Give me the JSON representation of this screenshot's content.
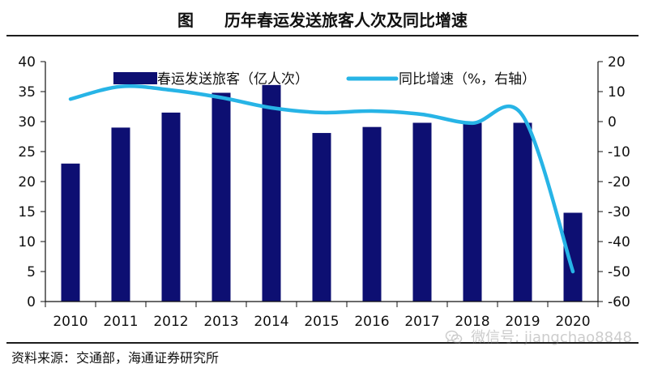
{
  "header": {
    "title_prefix": "图",
    "title_main": "历年春运发送旅客人次及同比增速"
  },
  "source": "资料来源：交通部，海通证券研究所",
  "watermark": {
    "text": "微信号: jiangchao8848",
    "icon": "wechat-icon"
  },
  "colors": {
    "bar": "#0d0f72",
    "line": "#27b4e6",
    "axis": "#111111",
    "text": "#111111",
    "watermark": "#8a8a8a"
  },
  "chart_data": {
    "type": "bar",
    "title": "历年春运发送旅客人次及同比增速",
    "categories": [
      "2010",
      "2011",
      "2012",
      "2013",
      "2014",
      "2015",
      "2016",
      "2017",
      "2018",
      "2019",
      "2020"
    ],
    "series": [
      {
        "name": "春运发送旅客（亿人次）",
        "type": "bar",
        "axis": "left",
        "values": [
          23.0,
          29.0,
          31.5,
          34.8,
          36.1,
          28.1,
          29.1,
          29.8,
          29.8,
          29.8,
          14.8
        ]
      },
      {
        "name": "同比增速（%，右轴）",
        "type": "line",
        "axis": "right",
        "values": [
          7.5,
          11.7,
          10.5,
          8.0,
          4.6,
          3.0,
          3.5,
          2.4,
          -0.5,
          2.0,
          -50.0
        ]
      }
    ],
    "left_axis": {
      "ylim": [
        0,
        40
      ],
      "ticks": [
        "0",
        "5",
        "10",
        "15",
        "20",
        "25",
        "30",
        "35",
        "40"
      ]
    },
    "right_axis": {
      "ylim": [
        -60,
        20
      ],
      "ticks": [
        "-60",
        "-50",
        "-40",
        "-30",
        "-20",
        "-10",
        "0",
        "10",
        "20"
      ]
    },
    "legend": {
      "position": "top",
      "items": [
        "春运发送旅客（亿人次）",
        "同比增速（%，右轴）"
      ]
    },
    "grid": false
  }
}
